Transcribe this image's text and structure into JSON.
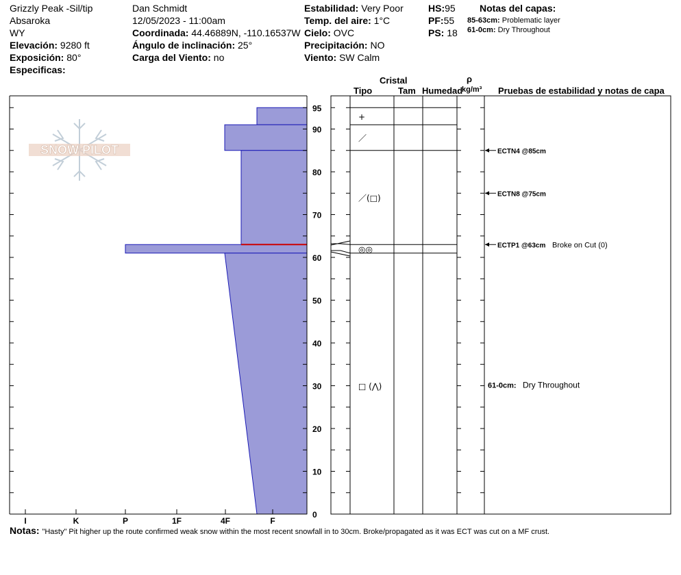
{
  "header": {
    "location": "Grizzly Peak -Sil/tip",
    "range": "Absaroka",
    "state": "WY",
    "elevation_label": "Elevación:",
    "elevation_value": "9280 ft",
    "aspect_label": "Exposición:",
    "aspect_value": "80°",
    "specifics_label": "Especificas:",
    "observer": "Dan Schmidt",
    "datetime": "12/05/2023 - 11:00am",
    "coord_label": "Coordinada:",
    "coord_value": "44.46889N, -110.16537W",
    "slope_label": "Ángulo de inclinación:",
    "slope_value": "25°",
    "windload_label": "Carga del Viento:",
    "windload_value": "no",
    "stability_label": "Estabilidad:",
    "stability_value": "Very Poor",
    "airtemp_label": "Temp. del aire:",
    "airtemp_value": "1°C",
    "sky_label": "Cielo:",
    "sky_value": "OVC",
    "precip_label": "Precipitación:",
    "precip_value": "NO",
    "wind_label": "Viento:",
    "wind_value": "SW Calm",
    "hs_label": "HS:",
    "hs_value": "95",
    "pf_label": "PF:",
    "pf_value": "55",
    "ps_label": "PS:",
    "ps_value": "18",
    "layer_notes_title": "Notas del capas:",
    "layer_notes": [
      {
        "range": "85-63cm:",
        "text": "Problematic layer"
      },
      {
        "range": "61-0cm:",
        "text": "Dry Throughout"
      }
    ]
  },
  "columns": {
    "cristal": "Cristal",
    "tipo": "Tipo",
    "tam": "Tam",
    "humedad": "Humedad",
    "rho": "ρ",
    "density_unit": "kg/m³",
    "tests": "Pruebas de estabilidad y notas de capa"
  },
  "logo_text": "SNOW PILOT",
  "notes_label": "Notas:",
  "notes_text": "\"Hasty\" Pit higher up the route confirmed weak snow within the most recent snowfall in to 30cm.  Broke/propagated as it was ECT was cut on a MF crust.",
  "chart_data": {
    "type": "snow_profile",
    "depth_axis": {
      "min": 0,
      "max": 95,
      "ticks": [
        0,
        10,
        20,
        30,
        40,
        50,
        60,
        70,
        80,
        90,
        95
      ]
    },
    "hardness_axis": {
      "ticks": [
        "I",
        "K",
        "P",
        "1F",
        "4F",
        "F"
      ]
    },
    "layers": [
      {
        "top": 95,
        "bottom": 91,
        "hardness_top": "4F+",
        "hardness_bottom": "4F+"
      },
      {
        "top": 91,
        "bottom": 85,
        "hardness_top": "4F-",
        "hardness_bottom": "4F-"
      },
      {
        "top": 85,
        "bottom": 63,
        "hardness_top": "4F",
        "hardness_bottom": "4F"
      },
      {
        "top": 63,
        "bottom": 61,
        "hardness_top": "P",
        "hardness_bottom": "P"
      },
      {
        "top": 61,
        "bottom": 0,
        "hardness_top": "4F-",
        "hardness_bottom": "F-"
      }
    ],
    "problem_layer_depth": 63,
    "crystals": [
      {
        "depth": 93,
        "symbol": "+"
      },
      {
        "depth": 88,
        "symbol": "／"
      },
      {
        "depth": 74,
        "symbol": "／(□)"
      },
      {
        "depth": 62,
        "symbol": "◎◎"
      },
      {
        "depth": 30,
        "symbol": "□ (⋀)"
      }
    ],
    "tests": [
      {
        "depth": 85,
        "label": "ECTN4 @85cm",
        "note": ""
      },
      {
        "depth": 75,
        "label": "ECTN8 @75cm",
        "note": ""
      },
      {
        "depth": 63,
        "label": "ECTP1 @63cm",
        "note": "Broke on Cut (0)"
      }
    ],
    "layer_note_in_chart": {
      "depth": 30,
      "label": "61-0cm:",
      "text": "Dry Throughout"
    },
    "colors": {
      "fill": "#9b9bd8",
      "outline": "#1a1ab5",
      "problem": "#cc0000"
    }
  }
}
